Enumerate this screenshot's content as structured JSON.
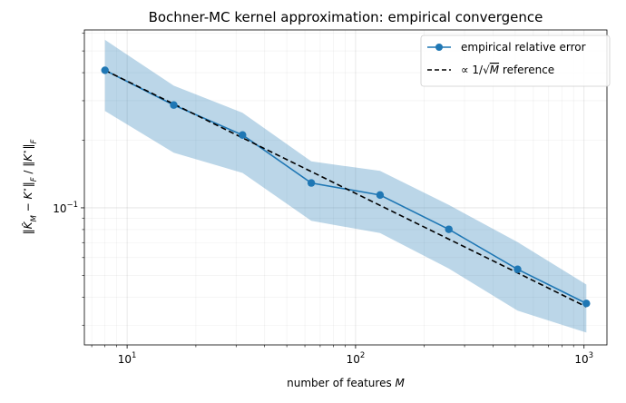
{
  "chart_data": {
    "type": "line",
    "title": "Bochner-MC kernel approximation: empirical convergence",
    "xlabel": "number of features M",
    "ylabel": "‖K̂_M − K*‖_F / ‖K*‖_F",
    "xscale": "log",
    "yscale": "log",
    "xlim": [
      6.5,
      1260
    ],
    "ylim": [
      0.0245,
      0.62
    ],
    "grid": true,
    "legend_position": "top-right",
    "x_tick_labels": [
      "10^1",
      "10^2",
      "10^3"
    ],
    "y_tick_labels": [
      "10^-1"
    ],
    "x": [
      8,
      16,
      32,
      64,
      128,
      256,
      512,
      1024
    ],
    "series": [
      {
        "name": "empirical relative error",
        "style": "line-marker",
        "color": "#1f77b4",
        "values": [
          0.41,
          0.287,
          0.211,
          0.129,
          0.114,
          0.0802,
          0.0532,
          0.0375
        ]
      },
      {
        "name": "∝ 1/√M reference",
        "style": "dashed",
        "color": "#000000",
        "values": [
          0.41,
          0.29,
          0.205,
          0.145,
          0.1025,
          0.0725,
          0.0513,
          0.0362
        ]
      }
    ],
    "band": {
      "color": "#1f77b4",
      "opacity": 0.3,
      "upper": [
        0.56,
        0.35,
        0.265,
        0.161,
        0.146,
        0.103,
        0.0703,
        0.0455
      ],
      "lower": [
        0.27,
        0.176,
        0.143,
        0.0875,
        0.0772,
        0.0536,
        0.0348,
        0.0278
      ]
    }
  }
}
